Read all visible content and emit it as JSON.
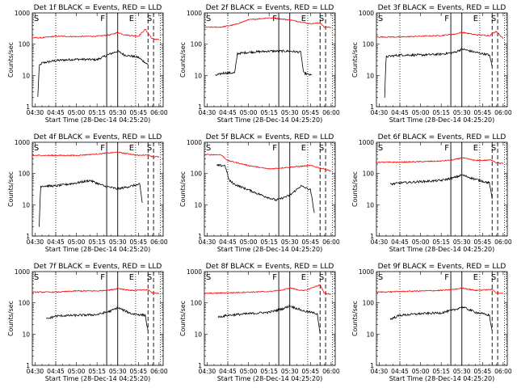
{
  "figure": {
    "xlabel": "Start Time (28-Dec-14 04:25:20)",
    "ylabel": "Counts/sec",
    "x_tick_labels": [
      "04:30",
      "04:45",
      "05:00",
      "05:15",
      "05:30",
      "05:45",
      "06:00"
    ],
    "y_tick_labels": [
      "1",
      "10",
      "100",
      "1000"
    ],
    "colors": {
      "events": "#000000",
      "lld": "#ff0000"
    }
  },
  "chart_data": [
    {
      "type": "line",
      "title": "Det 1f BLACK = Events, RED = LLD",
      "x_range": [
        "04:28",
        "06:03"
      ],
      "ylim": [
        1,
        1000
      ],
      "y_scale": "log",
      "series": [
        {
          "name": "Events",
          "color": "#000000",
          "x": [
            "04:32",
            "04:33",
            "04:35",
            "04:45",
            "05:00",
            "05:15",
            "05:25",
            "05:30",
            "05:35",
            "05:45",
            "05:52"
          ],
          "values": [
            2,
            20,
            25,
            30,
            33,
            32,
            50,
            60,
            45,
            38,
            22
          ]
        },
        {
          "name": "LLD",
          "color": "#ff0000",
          "x": [
            "04:28",
            "04:35",
            "04:45",
            "05:00",
            "05:15",
            "05:25",
            "05:30",
            "05:35",
            "05:45",
            "05:50",
            "05:55",
            "06:00"
          ],
          "values": [
            160,
            160,
            180,
            175,
            180,
            200,
            240,
            200,
            180,
            300,
            150,
            140
          ]
        }
      ],
      "vlines": [
        {
          "x": "04:45",
          "style": "dotted"
        },
        {
          "x": "05:22",
          "style": "solid",
          "label": "F"
        },
        {
          "x": "05:30",
          "style": "solid"
        },
        {
          "x": "05:43",
          "style": "dotted",
          "label": "E"
        },
        {
          "x": "05:52",
          "style": "dashed"
        },
        {
          "x": "05:56",
          "style": "dashed",
          "label": "S"
        },
        {
          "x": "06:01",
          "style": "dotted"
        }
      ],
      "corner_label": "S"
    },
    {
      "type": "line",
      "title": "Det 2f BLACK = Events, RED = LLD",
      "x_range": [
        "04:28",
        "06:03"
      ],
      "ylim": [
        1,
        1000
      ],
      "y_scale": "log",
      "series": [
        {
          "name": "Events",
          "color": "#000000",
          "x": [
            "04:36",
            "04:42",
            "04:50",
            "04:52",
            "05:00",
            "05:15",
            "05:30",
            "05:38",
            "05:40",
            "05:46"
          ],
          "values": [
            10,
            12,
            12,
            50,
            55,
            60,
            60,
            55,
            12,
            10
          ]
        },
        {
          "name": "LLD",
          "color": "#ff0000",
          "x": [
            "04:28",
            "04:40",
            "04:50",
            "05:00",
            "05:15",
            "05:30",
            "05:45",
            "05:52",
            "05:55",
            "06:00"
          ],
          "values": [
            350,
            350,
            420,
            600,
            700,
            600,
            450,
            480,
            350,
            350
          ]
        }
      ],
      "vlines": [
        {
          "x": "04:45",
          "style": "dotted"
        },
        {
          "x": "05:22",
          "style": "solid",
          "label": "F"
        },
        {
          "x": "05:30",
          "style": "solid"
        },
        {
          "x": "05:43",
          "style": "dotted",
          "label": "E"
        },
        {
          "x": "05:52",
          "style": "dashed"
        },
        {
          "x": "05:56",
          "style": "dashed",
          "label": "S"
        },
        {
          "x": "06:01",
          "style": "dotted"
        }
      ],
      "corner_label": "S"
    },
    {
      "type": "line",
      "title": "Det 3f BLACK = Events, RED = LLD",
      "x_range": [
        "04:28",
        "06:03"
      ],
      "ylim": [
        1,
        1000
      ],
      "y_scale": "log",
      "series": [
        {
          "name": "Events",
          "color": "#000000",
          "x": [
            "04:34",
            "04:35",
            "04:45",
            "05:00",
            "05:15",
            "05:25",
            "05:30",
            "05:40",
            "05:50",
            "05:52"
          ],
          "values": [
            2,
            40,
            45,
            45,
            48,
            55,
            70,
            55,
            45,
            20
          ]
        },
        {
          "name": "LLD",
          "color": "#ff0000",
          "x": [
            "04:28",
            "04:45",
            "05:00",
            "05:15",
            "05:25",
            "05:30",
            "05:40",
            "05:50",
            "05:55",
            "06:00"
          ],
          "values": [
            170,
            170,
            180,
            190,
            210,
            240,
            200,
            190,
            260,
            150
          ]
        }
      ],
      "vlines": [
        {
          "x": "04:45",
          "style": "dotted"
        },
        {
          "x": "05:22",
          "style": "solid",
          "label": "F"
        },
        {
          "x": "05:30",
          "style": "solid"
        },
        {
          "x": "05:43",
          "style": "dotted",
          "label": "E"
        },
        {
          "x": "05:52",
          "style": "dashed"
        },
        {
          "x": "05:56",
          "style": "dashed",
          "label": "S"
        },
        {
          "x": "06:01",
          "style": "dotted"
        }
      ],
      "corner_label": "S"
    },
    {
      "type": "line",
      "title": "Det 4f BLACK = Events, RED = LLD",
      "x_range": [
        "04:28",
        "06:03"
      ],
      "ylim": [
        1,
        1000
      ],
      "y_scale": "log",
      "series": [
        {
          "name": "Events",
          "color": "#000000",
          "x": [
            "04:33",
            "04:34",
            "04:45",
            "05:00",
            "05:10",
            "05:20",
            "05:30",
            "05:40",
            "05:46",
            "05:48"
          ],
          "values": [
            2,
            40,
            40,
            50,
            60,
            40,
            32,
            40,
            45,
            10
          ]
        },
        {
          "name": "LLD",
          "color": "#ff0000",
          "x": [
            "04:28",
            "04:45",
            "05:00",
            "05:15",
            "05:25",
            "05:30",
            "05:45",
            "05:52",
            "05:55",
            "06:00"
          ],
          "values": [
            380,
            380,
            380,
            420,
            460,
            480,
            380,
            400,
            350,
            340
          ]
        }
      ],
      "vlines": [
        {
          "x": "04:45",
          "style": "dotted"
        },
        {
          "x": "05:22",
          "style": "solid",
          "label": "F"
        },
        {
          "x": "05:30",
          "style": "solid"
        },
        {
          "x": "05:43",
          "style": "dotted",
          "label": "E"
        },
        {
          "x": "05:52",
          "style": "dashed"
        },
        {
          "x": "05:56",
          "style": "dashed",
          "label": "S"
        },
        {
          "x": "06:01",
          "style": "dotted"
        }
      ],
      "corner_label": "S"
    },
    {
      "type": "line",
      "title": "Det 5f BLACK = Events, RED = LLD",
      "x_range": [
        "04:28",
        "06:03"
      ],
      "ylim": [
        1,
        1000
      ],
      "y_scale": "log",
      "series": [
        {
          "name": "Events",
          "color": "#000000",
          "x": [
            "04:37",
            "04:43",
            "04:46",
            "04:50",
            "05:00",
            "05:10",
            "05:20",
            "05:30",
            "05:38",
            "05:45",
            "05:48"
          ],
          "values": [
            180,
            180,
            60,
            45,
            30,
            20,
            14,
            20,
            40,
            30,
            5
          ]
        },
        {
          "name": "LLD",
          "color": "#ff0000",
          "x": [
            "04:28",
            "04:40",
            "04:45",
            "05:00",
            "05:15",
            "05:30",
            "05:45",
            "05:52",
            "05:55",
            "06:00"
          ],
          "values": [
            400,
            400,
            260,
            180,
            140,
            160,
            180,
            150,
            140,
            120
          ]
        }
      ],
      "vlines": [
        {
          "x": "04:45",
          "style": "dotted"
        },
        {
          "x": "05:22",
          "style": "solid",
          "label": "F"
        },
        {
          "x": "05:30",
          "style": "solid"
        },
        {
          "x": "05:43",
          "style": "dotted",
          "label": "E"
        },
        {
          "x": "05:52",
          "style": "dashed"
        },
        {
          "x": "05:56",
          "style": "dashed",
          "label": "S"
        },
        {
          "x": "06:01",
          "style": "dotted"
        }
      ],
      "corner_label": "S"
    },
    {
      "type": "line",
      "title": "Det 6f BLACK = Events, RED = LLD",
      "x_range": [
        "04:28",
        "06:03"
      ],
      "ylim": [
        1,
        1000
      ],
      "y_scale": "log",
      "series": [
        {
          "name": "Events",
          "color": "#000000",
          "x": [
            "04:38",
            "04:45",
            "05:00",
            "05:15",
            "05:25",
            "05:30",
            "05:40",
            "05:50",
            "05:52"
          ],
          "values": [
            45,
            50,
            55,
            60,
            75,
            90,
            65,
            50,
            15
          ]
        },
        {
          "name": "LLD",
          "color": "#ff0000",
          "x": [
            "04:28",
            "04:45",
            "05:00",
            "05:15",
            "05:25",
            "05:30",
            "05:40",
            "05:52",
            "05:55",
            "06:00"
          ],
          "values": [
            230,
            230,
            240,
            250,
            280,
            320,
            260,
            270,
            220,
            210
          ]
        }
      ],
      "vlines": [
        {
          "x": "04:45",
          "style": "dotted"
        },
        {
          "x": "05:22",
          "style": "solid",
          "label": "F"
        },
        {
          "x": "05:30",
          "style": "solid"
        },
        {
          "x": "05:43",
          "style": "dotted",
          "label": "E"
        },
        {
          "x": "05:52",
          "style": "dashed"
        },
        {
          "x": "05:56",
          "style": "dashed",
          "label": "S"
        },
        {
          "x": "06:01",
          "style": "dotted"
        }
      ],
      "corner_label": "S"
    },
    {
      "type": "line",
      "title": "Det 7f BLACK = Events, RED = LLD",
      "x_range": [
        "04:28",
        "06:03"
      ],
      "ylim": [
        1,
        1000
      ],
      "y_scale": "log",
      "series": [
        {
          "name": "Events",
          "color": "#000000",
          "x": [
            "04:38",
            "04:45",
            "05:00",
            "05:15",
            "05:25",
            "05:30",
            "05:40",
            "05:50",
            "05:52"
          ],
          "values": [
            30,
            38,
            40,
            42,
            55,
            70,
            45,
            40,
            12
          ]
        },
        {
          "name": "LLD",
          "color": "#ff0000",
          "x": [
            "04:28",
            "04:45",
            "05:00",
            "05:15",
            "05:25",
            "05:30",
            "05:40",
            "05:52",
            "05:55",
            "06:00"
          ],
          "values": [
            220,
            220,
            240,
            240,
            260,
            290,
            250,
            260,
            210,
            200
          ]
        }
      ],
      "vlines": [
        {
          "x": "04:45",
          "style": "dotted"
        },
        {
          "x": "05:22",
          "style": "solid",
          "label": "F"
        },
        {
          "x": "05:30",
          "style": "solid"
        },
        {
          "x": "05:43",
          "style": "dotted",
          "label": "E"
        },
        {
          "x": "05:52",
          "style": "dashed"
        },
        {
          "x": "05:56",
          "style": "dashed",
          "label": "S"
        },
        {
          "x": "06:01",
          "style": "dotted"
        }
      ],
      "corner_label": "S"
    },
    {
      "type": "line",
      "title": "Det 8f BLACK = Events, RED = LLD",
      "x_range": [
        "04:28",
        "06:03"
      ],
      "ylim": [
        1,
        1000
      ],
      "y_scale": "log",
      "series": [
        {
          "name": "Events",
          "color": "#000000",
          "x": [
            "04:38",
            "04:45",
            "05:00",
            "05:15",
            "05:25",
            "05:30",
            "05:40",
            "05:50",
            "05:52"
          ],
          "values": [
            35,
            40,
            45,
            50,
            65,
            80,
            55,
            45,
            10
          ]
        },
        {
          "name": "LLD",
          "color": "#ff0000",
          "x": [
            "04:28",
            "04:45",
            "05:00",
            "05:15",
            "05:25",
            "05:30",
            "05:40",
            "05:52",
            "05:55",
            "06:00"
          ],
          "values": [
            200,
            210,
            220,
            230,
            260,
            300,
            240,
            380,
            200,
            190
          ]
        }
      ],
      "vlines": [
        {
          "x": "04:45",
          "style": "dotted"
        },
        {
          "x": "05:22",
          "style": "solid",
          "label": "F"
        },
        {
          "x": "05:30",
          "style": "solid"
        },
        {
          "x": "05:43",
          "style": "dotted",
          "label": "E"
        },
        {
          "x": "05:52",
          "style": "dashed"
        },
        {
          "x": "05:56",
          "style": "dashed",
          "label": "S"
        },
        {
          "x": "06:01",
          "style": "dotted"
        }
      ],
      "corner_label": "S"
    },
    {
      "type": "line",
      "title": "Det 9f BLACK = Events, RED = LLD",
      "x_range": [
        "04:28",
        "06:03"
      ],
      "ylim": [
        1,
        1000
      ],
      "y_scale": "log",
      "series": [
        {
          "name": "Events",
          "color": "#000000",
          "x": [
            "04:38",
            "04:45",
            "05:00",
            "05:15",
            "05:25",
            "05:30",
            "05:40",
            "05:50",
            "05:52"
          ],
          "values": [
            30,
            40,
            45,
            48,
            60,
            75,
            50,
            40,
            12
          ]
        },
        {
          "name": "LLD",
          "color": "#ff0000",
          "x": [
            "04:28",
            "04:45",
            "05:00",
            "05:15",
            "05:25",
            "05:30",
            "05:40",
            "05:52",
            "05:55",
            "06:00"
          ],
          "values": [
            220,
            230,
            240,
            250,
            270,
            300,
            250,
            270,
            210,
            200
          ]
        }
      ],
      "vlines": [
        {
          "x": "04:45",
          "style": "dotted"
        },
        {
          "x": "05:22",
          "style": "solid",
          "label": "F"
        },
        {
          "x": "05:30",
          "style": "solid"
        },
        {
          "x": "05:43",
          "style": "dotted",
          "label": "E"
        },
        {
          "x": "05:52",
          "style": "dashed"
        },
        {
          "x": "05:56",
          "style": "dashed",
          "label": "S"
        },
        {
          "x": "06:01",
          "style": "dotted"
        }
      ],
      "corner_label": "S"
    }
  ]
}
